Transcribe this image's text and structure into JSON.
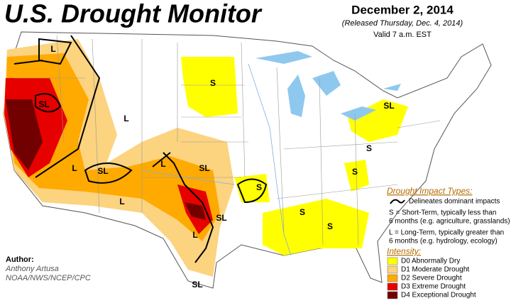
{
  "header": {
    "title": "U.S. Drought Monitor",
    "date": "December 2, 2014",
    "released": "(Released Thursday, Dec. 4, 2014)",
    "valid": "Valid 7 a.m. EST"
  },
  "map_labels": [
    "L",
    "SL",
    "L",
    "L",
    "SL",
    "L",
    "SL",
    "L",
    "L",
    "SL",
    "S",
    "S",
    "S",
    "S",
    "SL",
    "S",
    "S",
    "SL"
  ],
  "legend": {
    "impact_title": "Drought Impact Types:",
    "delineates": "Delineates dominant impacts",
    "short_term": [
      "S = Short-Term, typically less than",
      "6 months (e.g. agriculture, grasslands)"
    ],
    "long_term": [
      "L = Long-Term, typically greater than",
      "6 months (e.g. hydrology, ecology)"
    ],
    "intensity_title": "Intensity:",
    "intensity": [
      {
        "label": "D0 Abnormally Dry",
        "color": "#ffff00"
      },
      {
        "label": "D1 Moderate Drought",
        "color": "#fcd37f"
      },
      {
        "label": "D2 Severe Drought",
        "color": "#ffaa00"
      },
      {
        "label": "D3 Extreme Drought",
        "color": "#e60000"
      },
      {
        "label": "D4 Exceptional Drought",
        "color": "#730000"
      }
    ]
  },
  "author": {
    "heading": "Author:",
    "name": "Anthony Artusa",
    "org": "NOAA/NWS/NCEP/CPC"
  }
}
